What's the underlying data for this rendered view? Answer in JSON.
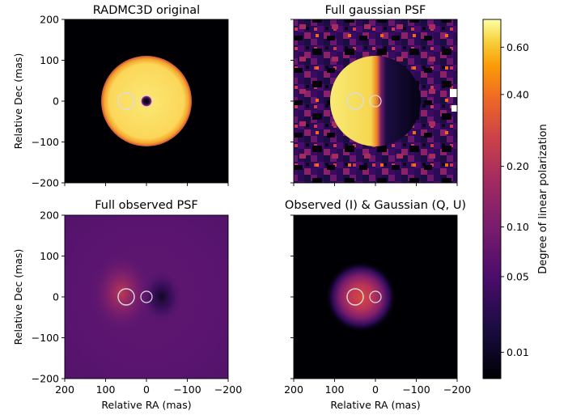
{
  "chart_data": [
    {
      "type": "heatmap",
      "title": "RADMC3D original",
      "xlabel": "",
      "ylabel": "Relative Dec (mas)",
      "xlim": [
        200,
        -200
      ],
      "ylim": [
        -200,
        200
      ],
      "xticks": [
        "200",
        "100",
        "0",
        "−100",
        "−200"
      ],
      "yticks": [
        "200",
        "100",
        "0",
        "−100",
        "−200"
      ],
      "show_xtick_labels": false,
      "show_ytick_labels": true,
      "disk": {
        "center": [
          0,
          0
        ],
        "radius": 110,
        "pol_level": 0.6
      },
      "markers": [
        {
          "center": [
            50,
            0
          ],
          "radius": 20
        },
        {
          "center": [
            0,
            0
          ],
          "radius": 13
        }
      ]
    },
    {
      "type": "heatmap",
      "title": "Full gaussian PSF",
      "xlabel": "",
      "ylabel": "",
      "xlim": [
        200,
        -200
      ],
      "ylim": [
        -200,
        200
      ],
      "xticks": [
        "200",
        "100",
        "0",
        "−100",
        "−200"
      ],
      "yticks": [
        "200",
        "100",
        "0",
        "−100",
        "−200"
      ],
      "show_xtick_labels": false,
      "show_ytick_labels": false,
      "disk": {
        "center": [
          0,
          0
        ],
        "radius": 110,
        "pol_level_left": 0.6,
        "pol_level_right": 0.0
      },
      "markers": [
        {
          "center": [
            50,
            0
          ],
          "radius": 20
        },
        {
          "center": [
            0,
            0
          ],
          "radius": 13
        }
      ]
    },
    {
      "type": "heatmap",
      "title": "Full observed PSF",
      "xlabel": "Relative RA (mas)",
      "ylabel": "Relative Dec (mas)",
      "xlim": [
        200,
        -200
      ],
      "ylim": [
        -200,
        200
      ],
      "xticks": [
        "200",
        "100",
        "0",
        "−100",
        "−200"
      ],
      "yticks": [
        "200",
        "100",
        "0",
        "−100",
        "−200"
      ],
      "show_xtick_labels": true,
      "show_ytick_labels": true,
      "markers": [
        {
          "center": [
            50,
            0
          ],
          "radius": 20
        },
        {
          "center": [
            0,
            0
          ],
          "radius": 13
        }
      ]
    },
    {
      "type": "heatmap",
      "title": "Observed (I) & Gaussian (Q, U)",
      "xlabel": "Relative RA (mas)",
      "ylabel": "",
      "xlim": [
        200,
        -200
      ],
      "ylim": [
        -200,
        200
      ],
      "xticks": [
        "200",
        "100",
        "0",
        "−100",
        "−200"
      ],
      "yticks": [
        "200",
        "100",
        "0",
        "−100",
        "−200"
      ],
      "show_xtick_labels": true,
      "show_ytick_labels": false,
      "markers": [
        {
          "center": [
            50,
            0
          ],
          "radius": 20
        },
        {
          "center": [
            0,
            0
          ],
          "radius": 13
        }
      ]
    }
  ],
  "colorbar": {
    "label": "Degree of linear polarization",
    "colormap": "inferno",
    "scale": "log",
    "ticks": [
      {
        "label": "0.60",
        "value": 0.6
      },
      {
        "label": "0.40",
        "value": 0.4
      },
      {
        "label": "0.20",
        "value": 0.2
      },
      {
        "label": "0.10",
        "value": 0.1
      },
      {
        "label": "0.05",
        "value": 0.05
      },
      {
        "label": "0.01",
        "value": 0.01
      }
    ]
  }
}
